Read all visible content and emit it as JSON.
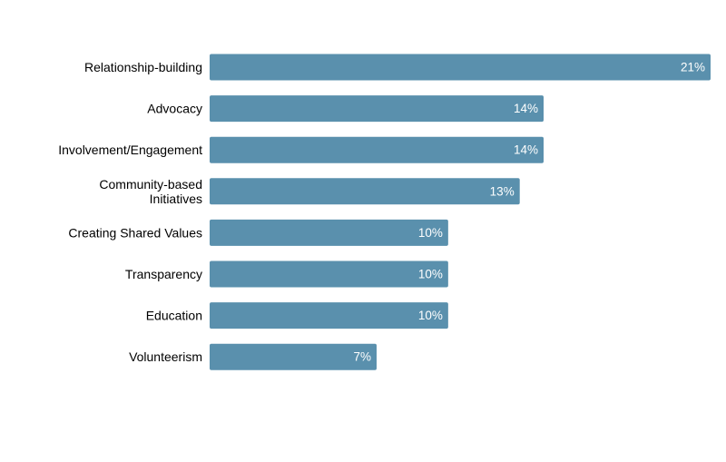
{
  "chart_data": {
    "type": "bar",
    "orientation": "horizontal",
    "categories": [
      "Relationship-building",
      "Advocacy",
      "Involvement/Engagement",
      "Community-based Initiatives",
      "Creating Shared Values",
      "Transparency",
      "Education",
      "Volunteerism"
    ],
    "category_label_lines": [
      [
        "Relationship-building"
      ],
      [
        "Advocacy"
      ],
      [
        "Involvement/Engagement"
      ],
      [
        "Community-based",
        "Initiatives"
      ],
      [
        "Creating Shared Values"
      ],
      [
        "Transparency"
      ],
      [
        "Education"
      ],
      [
        "Volunteerism"
      ]
    ],
    "values": [
      21,
      14,
      14,
      13,
      10,
      10,
      10,
      7
    ],
    "value_labels": [
      "21%",
      "14%",
      "14%",
      "13%",
      "10%",
      "10%",
      "10%",
      "7%"
    ],
    "unit": "%",
    "xlim": [
      0,
      21
    ],
    "title": "",
    "xlabel": "",
    "ylabel": "",
    "grid": false,
    "legend": "none",
    "bar_color": "#5a90ad",
    "label_color": "#ffffff"
  }
}
